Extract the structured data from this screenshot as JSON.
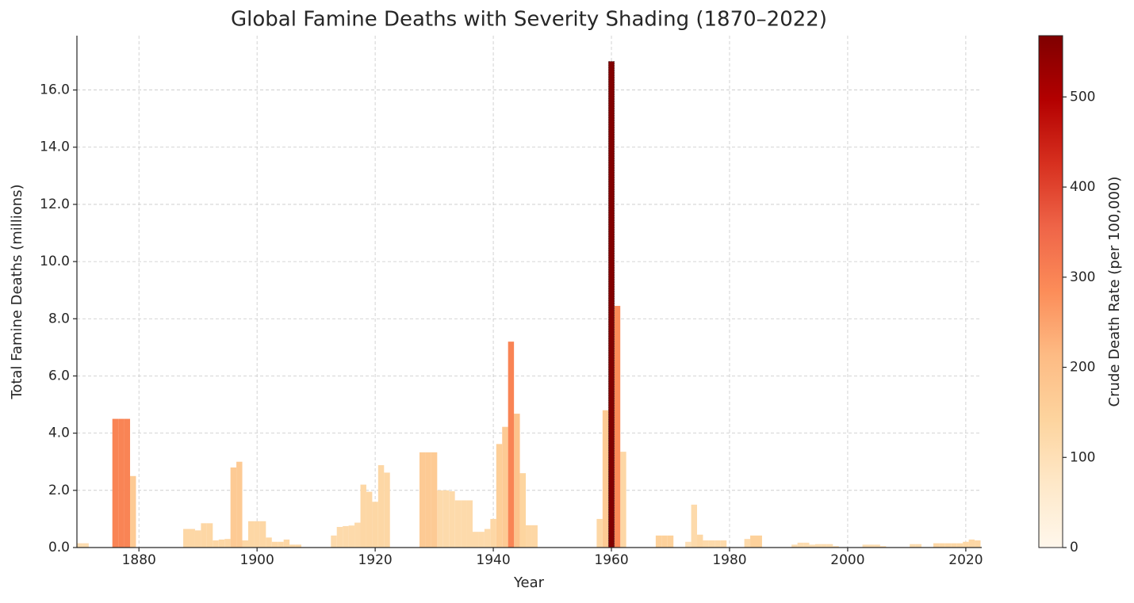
{
  "chart_data": {
    "type": "bar",
    "title": "Global Famine Deaths with Severity Shading (1870–2022)",
    "x_label": "Year",
    "y_label": "Total Famine Deaths (millions)",
    "colorbar_label": "Crude Death Rate (per 100,000)",
    "x": [
      1870,
      1871,
      1876,
      1877,
      1878,
      1879,
      1888,
      1889,
      1890,
      1891,
      1892,
      1893,
      1894,
      1895,
      1896,
      1897,
      1898,
      1899,
      1900,
      1901,
      1902,
      1903,
      1904,
      1905,
      1906,
      1907,
      1913,
      1914,
      1915,
      1916,
      1917,
      1918,
      1919,
      1920,
      1921,
      1922,
      1928,
      1929,
      1930,
      1931,
      1932,
      1933,
      1934,
      1935,
      1936,
      1937,
      1938,
      1939,
      1940,
      1941,
      1942,
      1943,
      1944,
      1945,
      1946,
      1947,
      1958,
      1959,
      1960,
      1961,
      1962,
      1968,
      1969,
      1970,
      1973,
      1974,
      1975,
      1976,
      1977,
      1978,
      1979,
      1983,
      1984,
      1985,
      1991,
      1992,
      1993,
      1994,
      1995,
      1996,
      1997,
      1998,
      2003,
      2004,
      2005,
      2006,
      2011,
      2012,
      2015,
      2016,
      2017,
      2018,
      2019,
      2020,
      2021,
      2022
    ],
    "values": [
      0.15,
      0.15,
      4.5,
      4.5,
      4.5,
      2.5,
      0.65,
      0.65,
      0.6,
      0.85,
      0.85,
      0.25,
      0.28,
      0.3,
      2.8,
      3.0,
      0.25,
      0.92,
      0.92,
      0.92,
      0.35,
      0.2,
      0.2,
      0.28,
      0.1,
      0.1,
      0.42,
      0.72,
      0.75,
      0.77,
      0.87,
      2.2,
      1.95,
      1.6,
      2.88,
      2.62,
      3.33,
      3.33,
      3.33,
      2.0,
      2.0,
      1.97,
      1.65,
      1.65,
      1.65,
      0.55,
      0.55,
      0.65,
      1.0,
      3.62,
      4.22,
      7.2,
      4.68,
      2.6,
      0.78,
      0.78,
      1.0,
      4.8,
      17.0,
      8.45,
      3.35,
      0.42,
      0.42,
      0.42,
      0.2,
      1.5,
      0.45,
      0.25,
      0.25,
      0.25,
      0.25,
      0.3,
      0.42,
      0.42,
      0.1,
      0.17,
      0.17,
      0.1,
      0.12,
      0.12,
      0.12,
      0.05,
      0.1,
      0.1,
      0.1,
      0.05,
      0.12,
      0.12,
      0.15,
      0.15,
      0.15,
      0.15,
      0.15,
      0.2,
      0.28,
      0.25
    ],
    "rates": [
      110,
      110,
      300,
      300,
      300,
      170,
      130,
      130,
      130,
      130,
      130,
      130,
      130,
      130,
      170,
      170,
      130,
      130,
      130,
      130,
      130,
      130,
      130,
      130,
      130,
      130,
      120,
      120,
      120,
      120,
      120,
      130,
      130,
      130,
      130,
      130,
      170,
      170,
      170,
      120,
      120,
      120,
      120,
      120,
      120,
      120,
      120,
      120,
      130,
      160,
      170,
      300,
      190,
      140,
      130,
      130,
      130,
      170,
      565,
      290,
      130,
      150,
      150,
      150,
      100,
      120,
      130,
      120,
      120,
      120,
      120,
      120,
      150,
      150,
      110,
      110,
      110,
      110,
      110,
      110,
      110,
      110,
      110,
      110,
      110,
      110,
      110,
      110,
      130,
      130,
      130,
      130,
      130,
      130,
      130,
      130
    ],
    "colormap": [
      "#fff7ec",
      "#fee8c8",
      "#fdd49e",
      "#fdbb84",
      "#fc8d59",
      "#ef6548",
      "#d7301f",
      "#b30000",
      "#7f0000"
    ],
    "xlim": [
      1869.5,
      2022.7
    ],
    "xticks": [
      1880,
      1900,
      1920,
      1940,
      1960,
      1980,
      2000,
      2020
    ],
    "ylim": [
      0,
      17.9
    ],
    "yticks": [
      {
        "value": 0,
        "label": "0.0"
      },
      {
        "value": 2,
        "label": "2.0"
      },
      {
        "value": 4,
        "label": "4.0"
      },
      {
        "value": 6,
        "label": "6.0"
      },
      {
        "value": 8,
        "label": "8.0"
      },
      {
        "value": 10,
        "label": "10.0"
      },
      {
        "value": 12,
        "label": "12.0"
      },
      {
        "value": 14,
        "label": "14.0"
      },
      {
        "value": 16,
        "label": "16.0"
      }
    ],
    "clim": [
      0,
      568
    ],
    "cticks": [
      0,
      100,
      200,
      300,
      400,
      500
    ],
    "grid": true
  }
}
